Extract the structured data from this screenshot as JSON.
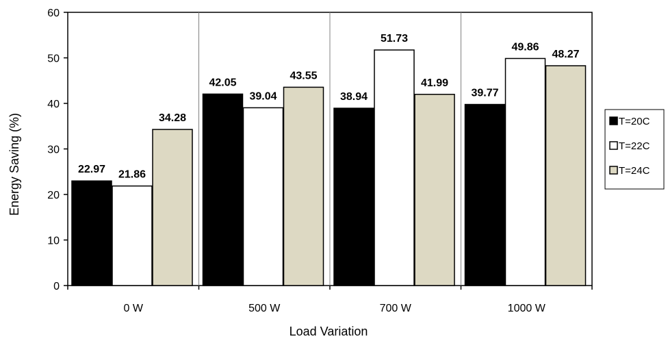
{
  "chart_data": {
    "type": "bar",
    "title": "",
    "xlabel": "Load Variation",
    "ylabel": "Energy Saving (%)",
    "ylim": [
      0,
      60
    ],
    "yticks": [
      0,
      10,
      20,
      30,
      40,
      50,
      60
    ],
    "categories": [
      "0 W",
      "500 W",
      "700 W",
      "1000 W"
    ],
    "series": [
      {
        "name": "T=20C",
        "values": [
          22.97,
          42.05,
          38.94,
          39.77
        ],
        "color": "#000000"
      },
      {
        "name": "T=22C",
        "values": [
          21.86,
          39.04,
          51.73,
          49.86
        ],
        "color": "#ffffff"
      },
      {
        "name": "T=24C",
        "values": [
          34.28,
          43.55,
          41.99,
          48.27
        ],
        "color": "#ddd9c3"
      }
    ],
    "data_labels": [
      [
        "22.97",
        "42.05",
        "38.94",
        "39.77"
      ],
      [
        "21.86",
        "39.04",
        "51.73",
        "49.86"
      ],
      [
        "34.28",
        "43.55",
        "41.99",
        "48.27"
      ]
    ],
    "grid": "vertical separators between categories",
    "legend_position": "right"
  }
}
